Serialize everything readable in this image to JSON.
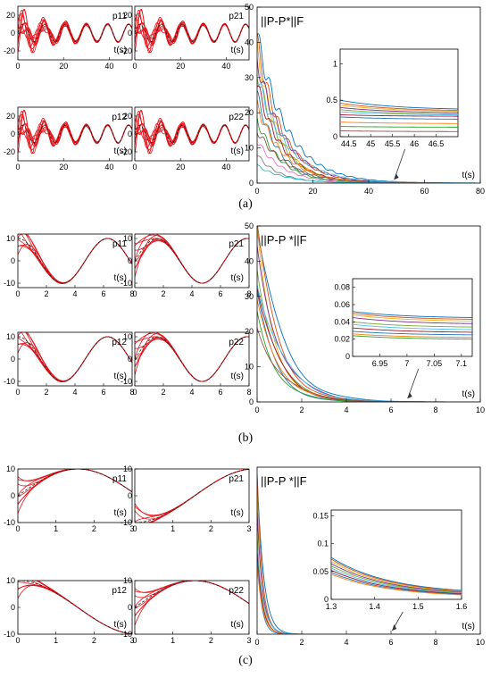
{
  "chart_data": [
    {
      "panel": "(a)",
      "subplots": [
        {
          "label": "p11",
          "type": "line",
          "xlabel": "t(s)",
          "xlim": [
            0,
            50
          ],
          "ylim": [
            -30,
            30
          ],
          "xticks": [
            0,
            20,
            40
          ],
          "yticks": [
            -20,
            0,
            20
          ],
          "reference": {
            "kind": "sin",
            "amp": 10,
            "freq": 0.68
          },
          "trajectories": {
            "count": 10,
            "init_amp_max": 22,
            "decay": 0.08,
            "base_freq": 0.85
          }
        },
        {
          "label": "p21",
          "type": "line",
          "xlabel": "t(s)",
          "xlim": [
            0,
            50
          ],
          "ylim": [
            -30,
            30
          ],
          "xticks": [
            0,
            20,
            40
          ],
          "yticks": [
            -20,
            0,
            20
          ],
          "reference": {
            "kind": "sin",
            "amp": 10,
            "freq": 0.68
          },
          "trajectories": {
            "count": 10,
            "init_amp_max": 22,
            "decay": 0.08,
            "base_freq": 0.85
          }
        },
        {
          "label": "p12",
          "type": "line",
          "xlabel": "t(s)",
          "xlim": [
            0,
            50
          ],
          "ylim": [
            -30,
            30
          ],
          "xticks": [
            0,
            20,
            40
          ],
          "yticks": [
            -20,
            0,
            20
          ],
          "reference": {
            "kind": "sin",
            "amp": 10,
            "freq": 0.68
          },
          "trajectories": {
            "count": 10,
            "init_amp_max": 22,
            "decay": 0.08,
            "base_freq": 0.85
          }
        },
        {
          "label": "p22",
          "type": "line",
          "xlabel": "t(s)",
          "xlim": [
            0,
            50
          ],
          "ylim": [
            -30,
            30
          ],
          "xticks": [
            0,
            20,
            40
          ],
          "yticks": [
            -20,
            0,
            20
          ],
          "reference": {
            "kind": "sin",
            "amp": 10,
            "freq": 0.68
          },
          "trajectories": {
            "count": 10,
            "init_amp_max": 22,
            "decay": 0.08,
            "base_freq": 0.85
          }
        }
      ],
      "main": {
        "type": "line",
        "title": "||P-P*||F",
        "xlabel": "t(s)",
        "xlim": [
          0,
          80
        ],
        "ylim": [
          0,
          50
        ],
        "xticks": [
          0,
          20,
          40,
          60,
          80
        ],
        "yticks": [
          0,
          10,
          20,
          30,
          40,
          50
        ],
        "series_initial": [
          42,
          40,
          38,
          35,
          32,
          30,
          28,
          25,
          22,
          18,
          15,
          12,
          8,
          5
        ],
        "decay_rate": 0.11,
        "inset": {
          "xlim": [
            44.3,
            47
          ],
          "ylim": [
            0,
            1.2
          ],
          "xticks": [
            44.5,
            45,
            45.5,
            46,
            46.5
          ],
          "ytick_labels": [
            "0",
            "0.5",
            "1"
          ],
          "yticks": [
            0,
            0.5,
            1
          ],
          "values_start": [
            0.5,
            0.46,
            0.43,
            0.4,
            0.37,
            0.34,
            0.3,
            0.27,
            0.2,
            0.14,
            0.08
          ],
          "values_end": [
            0.38,
            0.36,
            0.35,
            0.33,
            0.31,
            0.3,
            0.28,
            0.24,
            0.18,
            0.13,
            0.07
          ]
        }
      }
    },
    {
      "panel": "(b)",
      "subplots": [
        {
          "label": "p11",
          "type": "line",
          "xlabel": "t(s)",
          "xlim": [
            0,
            8
          ],
          "ylim": [
            -12,
            12
          ],
          "xticks": [
            0,
            2,
            4,
            6,
            8
          ],
          "yticks": [
            -10,
            0,
            10
          ],
          "reference": {
            "kind": "cos",
            "amp": 10,
            "freq": 1.0
          },
          "trajectories": {
            "count": 8,
            "init_amp_max": 12,
            "decay": 1.1,
            "base_freq": 1.0
          }
        },
        {
          "label": "p21",
          "type": "line",
          "xlabel": "t(s)",
          "xlim": [
            0,
            8
          ],
          "ylim": [
            -12,
            12
          ],
          "xticks": [
            0,
            2,
            4,
            6,
            8
          ],
          "yticks": [
            -10,
            0,
            10
          ],
          "reference": {
            "kind": "sin",
            "amp": 10,
            "freq": 1.0
          },
          "trajectories": {
            "count": 8,
            "init_amp_max": 12,
            "decay": 1.1,
            "base_freq": 1.0
          }
        },
        {
          "label": "p12",
          "type": "line",
          "xlabel": "t(s)",
          "xlim": [
            0,
            8
          ],
          "ylim": [
            -12,
            12
          ],
          "xticks": [
            0,
            2,
            4,
            6,
            8
          ],
          "yticks": [
            -10,
            0,
            10
          ],
          "reference": {
            "kind": "cos",
            "amp": 10,
            "freq": 1.0
          },
          "trajectories": {
            "count": 8,
            "init_amp_max": 12,
            "decay": 1.1,
            "base_freq": 1.0
          }
        },
        {
          "label": "p22",
          "type": "line",
          "xlabel": "t(s)",
          "xlim": [
            0,
            8
          ],
          "ylim": [
            -12,
            12
          ],
          "xticks": [
            0,
            2,
            4,
            6,
            8
          ],
          "yticks": [
            -10,
            0,
            10
          ],
          "reference": {
            "kind": "sin",
            "amp": 10,
            "freq": 1.0
          },
          "trajectories": {
            "count": 8,
            "init_amp_max": 12,
            "decay": 1.1,
            "base_freq": 1.0
          }
        }
      ],
      "main": {
        "type": "line",
        "title": "||P-P *||F",
        "xlabel": "t(s)",
        "xlim": [
          0,
          10
        ],
        "ylim": [
          0,
          50
        ],
        "xticks": [
          0,
          2,
          4,
          6,
          8,
          10
        ],
        "yticks": [
          0,
          10,
          20,
          30,
          40,
          50
        ],
        "series_initial": [
          49,
          48,
          46,
          44,
          40,
          36,
          33,
          30,
          27,
          25,
          22
        ],
        "decay_rate": 1.05,
        "inset": {
          "xlim": [
            6.9,
            7.12
          ],
          "ylim": [
            0,
            0.09
          ],
          "xticks": [
            6.95,
            7,
            7.05,
            7.1
          ],
          "ytick_labels": [
            "0",
            "0.02",
            "0.04",
            "0.06",
            "0.08"
          ],
          "yticks": [
            0,
            0.02,
            0.04,
            0.06,
            0.08
          ],
          "values_start": [
            0.052,
            0.05,
            0.048,
            0.045,
            0.04,
            0.037,
            0.033,
            0.029,
            0.026,
            0.024
          ],
          "values_end": [
            0.045,
            0.043,
            0.041,
            0.038,
            0.034,
            0.031,
            0.028,
            0.025,
            0.022,
            0.02
          ]
        }
      }
    },
    {
      "panel": "(c)",
      "subplots": [
        {
          "label": "p11",
          "type": "line",
          "xlabel": "t(s)",
          "xlim": [
            0,
            3
          ],
          "ylim": [
            -10,
            10
          ],
          "xticks": [
            0,
            1,
            2,
            3
          ],
          "yticks": [
            -10,
            0,
            10
          ],
          "reference": {
            "kind": "sin",
            "amp": 10,
            "freq": 1.0
          },
          "trajectories": {
            "count": 8,
            "init_amp_max": 11,
            "decay": 3.2,
            "base_freq": 1.0
          }
        },
        {
          "label": "p21",
          "type": "line",
          "xlabel": "t(s)",
          "xlim": [
            0,
            3
          ],
          "ylim": [
            -10,
            10
          ],
          "xticks": [
            0,
            1,
            2,
            3
          ],
          "yticks": [
            -10,
            0,
            10
          ],
          "reference": {
            "kind": "negcos",
            "amp": 10,
            "freq": 1.0
          },
          "trajectories": {
            "count": 8,
            "init_amp_max": 11,
            "decay": 3.2,
            "base_freq": 1.0
          }
        },
        {
          "label": "p12",
          "type": "line",
          "xlabel": "t(s)",
          "xlim": [
            0,
            3
          ],
          "ylim": [
            -10,
            10
          ],
          "xticks": [
            0,
            1,
            2,
            3
          ],
          "yticks": [
            -10,
            0,
            10
          ],
          "reference": {
            "kind": "cos",
            "amp": 10,
            "freq": 1.0
          },
          "trajectories": {
            "count": 8,
            "init_amp_max": 11,
            "decay": 3.2,
            "base_freq": 1.0
          }
        },
        {
          "label": "p22",
          "type": "line",
          "xlabel": "t(s)",
          "xlim": [
            0,
            3
          ],
          "ylim": [
            -10,
            10
          ],
          "xticks": [
            0,
            1,
            2,
            3
          ],
          "yticks": [
            -10,
            0,
            10
          ],
          "reference": {
            "kind": "sin",
            "amp": 10,
            "freq": 1.0
          },
          "trajectories": {
            "count": 8,
            "init_amp_max": 11,
            "decay": 3.2,
            "base_freq": 1.0
          }
        }
      ],
      "main": {
        "type": "line",
        "title": "||P-P *||F",
        "xlabel": "t(s)",
        "xlim": [
          0,
          10
        ],
        "ylim": [
          0,
          50
        ],
        "xticks": [
          0,
          2,
          4,
          6,
          8,
          10
        ],
        "yticks": [],
        "series_initial": [
          48,
          44,
          40,
          36,
          32,
          28,
          25,
          22,
          19
        ],
        "decay_rate": 4.2,
        "inset": {
          "xlim": [
            1.3,
            1.6
          ],
          "ylim": [
            0,
            0.16
          ],
          "xticks": [
            1.3,
            1.4,
            1.5,
            1.6
          ],
          "ytick_labels": [
            "0",
            "0.05",
            "0.1",
            "0.15"
          ],
          "yticks": [
            0,
            0.05,
            0.1,
            0.15
          ],
          "values_start": [
            0.075,
            0.072,
            0.068,
            0.064,
            0.06,
            0.056,
            0.052,
            0.048,
            0.045
          ],
          "values_end": [
            0.016,
            0.015,
            0.014,
            0.013,
            0.012,
            0.011,
            0.01,
            0.009,
            0.008
          ]
        }
      }
    }
  ],
  "series_colors": [
    "#0072BD",
    "#D95319",
    "#EDB120",
    "#7E2F8E",
    "#77AC30",
    "#4DBEEE",
    "#A2142F",
    "#1f77b4",
    "#ff7f0e",
    "#2ca02c",
    "#8c564b",
    "#e377c2",
    "#7f7f7f",
    "#17becf"
  ],
  "traj_color": "#e8141b",
  "ref_color": "#222222"
}
